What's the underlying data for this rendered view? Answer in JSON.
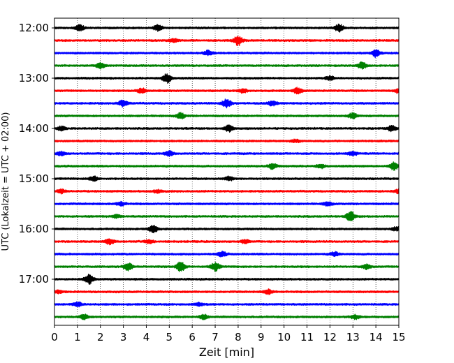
{
  "chart_data": {
    "type": "line",
    "title": "",
    "xlabel": "Zeit  [min]",
    "ylabel": "UTC (Lokalzeit = UTC + 02:00)",
    "xlim": [
      0,
      15
    ],
    "xticks": [
      0,
      1,
      2,
      3,
      4,
      5,
      6,
      7,
      8,
      9,
      10,
      11,
      12,
      13,
      14,
      15
    ],
    "x_tick_labels": [
      "0",
      "1",
      "2",
      "3",
      "4",
      "5",
      "6",
      "7",
      "8",
      "9",
      "10",
      "11",
      "12",
      "13",
      "14",
      "15"
    ],
    "y_tick_labels": [
      "12:00",
      "13:00",
      "14:00",
      "15:00",
      "16:00",
      "17:00"
    ],
    "grid": "vertical dotted",
    "trace_colors": [
      "#000000",
      "#ff0000",
      "#0000ff",
      "#008000"
    ],
    "row_minutes": 15,
    "start_time": "12:00",
    "traces": [
      {
        "start": "12:00",
        "color": "#000000",
        "bursts": [
          {
            "t": 1.1,
            "a": 0.6
          },
          {
            "t": 4.5,
            "a": 0.6
          },
          {
            "t": 12.4,
            "a": 0.8
          }
        ]
      },
      {
        "start": "12:15",
        "color": "#ff0000",
        "bursts": [
          {
            "t": 8.0,
            "a": 1.0
          },
          {
            "t": 5.2,
            "a": 0.4
          }
        ]
      },
      {
        "start": "12:30",
        "color": "#0000ff",
        "bursts": [
          {
            "t": 6.7,
            "a": 0.5
          },
          {
            "t": 14.0,
            "a": 0.8
          }
        ]
      },
      {
        "start": "12:45",
        "color": "#008000",
        "bursts": [
          {
            "t": 2.0,
            "a": 0.6
          },
          {
            "t": 13.4,
            "a": 0.7
          }
        ]
      },
      {
        "start": "13:00",
        "color": "#000000",
        "bursts": [
          {
            "t": 4.9,
            "a": 1.0
          },
          {
            "t": 12.0,
            "a": 0.4
          }
        ]
      },
      {
        "start": "13:15",
        "color": "#ff0000",
        "bursts": [
          {
            "t": 3.8,
            "a": 0.5
          },
          {
            "t": 8.2,
            "a": 0.4
          },
          {
            "t": 10.6,
            "a": 0.6
          },
          {
            "t": 15.0,
            "a": 0.5
          }
        ]
      },
      {
        "start": "13:30",
        "color": "#0000ff",
        "bursts": [
          {
            "t": 3.0,
            "a": 0.7
          },
          {
            "t": 7.5,
            "a": 0.9
          },
          {
            "t": 9.5,
            "a": 0.5
          }
        ]
      },
      {
        "start": "13:45",
        "color": "#008000",
        "bursts": [
          {
            "t": 5.5,
            "a": 0.6
          },
          {
            "t": 13.0,
            "a": 0.6
          }
        ]
      },
      {
        "start": "14:00",
        "color": "#000000",
        "bursts": [
          {
            "t": 0.3,
            "a": 0.4
          },
          {
            "t": 7.6,
            "a": 0.7
          },
          {
            "t": 14.7,
            "a": 0.6
          }
        ]
      },
      {
        "start": "14:15",
        "color": "#ff0000",
        "bursts": [
          {
            "t": 10.5,
            "a": 0.3
          }
        ]
      },
      {
        "start": "14:30",
        "color": "#0000ff",
        "bursts": [
          {
            "t": 0.3,
            "a": 0.4
          },
          {
            "t": 5.0,
            "a": 0.5
          },
          {
            "t": 13.0,
            "a": 0.4
          }
        ]
      },
      {
        "start": "14:45",
        "color": "#008000",
        "bursts": [
          {
            "t": 9.5,
            "a": 0.6
          },
          {
            "t": 11.6,
            "a": 0.4
          },
          {
            "t": 14.8,
            "a": 0.8
          }
        ]
      },
      {
        "start": "15:00",
        "color": "#000000",
        "bursts": [
          {
            "t": 1.7,
            "a": 0.5
          },
          {
            "t": 7.6,
            "a": 0.4
          }
        ]
      },
      {
        "start": "15:15",
        "color": "#ff0000",
        "bursts": [
          {
            "t": 0.3,
            "a": 0.4
          },
          {
            "t": 4.5,
            "a": 0.3
          },
          {
            "t": 15.0,
            "a": 0.4
          }
        ]
      },
      {
        "start": "15:30",
        "color": "#0000ff",
        "bursts": [
          {
            "t": 2.9,
            "a": 0.4
          },
          {
            "t": 11.9,
            "a": 0.4
          }
        ]
      },
      {
        "start": "15:45",
        "color": "#008000",
        "bursts": [
          {
            "t": 12.9,
            "a": 1.0
          },
          {
            "t": 2.7,
            "a": 0.3
          }
        ]
      },
      {
        "start": "16:00",
        "color": "#000000",
        "bursts": [
          {
            "t": 4.3,
            "a": 0.8
          },
          {
            "t": 14.9,
            "a": 0.4
          }
        ]
      },
      {
        "start": "16:15",
        "color": "#ff0000",
        "bursts": [
          {
            "t": 2.4,
            "a": 0.6
          },
          {
            "t": 4.1,
            "a": 0.4
          },
          {
            "t": 8.3,
            "a": 0.4
          }
        ]
      },
      {
        "start": "16:30",
        "color": "#0000ff",
        "bursts": [
          {
            "t": 7.3,
            "a": 0.5
          },
          {
            "t": 12.2,
            "a": 0.4
          }
        ]
      },
      {
        "start": "16:45",
        "color": "#008000",
        "bursts": [
          {
            "t": 3.2,
            "a": 0.8
          },
          {
            "t": 5.5,
            "a": 1.0
          },
          {
            "t": 7.0,
            "a": 0.9
          },
          {
            "t": 13.6,
            "a": 0.5
          }
        ]
      },
      {
        "start": "17:00",
        "color": "#000000",
        "bursts": [
          {
            "t": 1.5,
            "a": 1.0
          }
        ]
      },
      {
        "start": "17:15",
        "color": "#ff0000",
        "bursts": [
          {
            "t": 9.3,
            "a": 0.5
          },
          {
            "t": 0.2,
            "a": 0.3
          }
        ]
      },
      {
        "start": "17:30",
        "color": "#0000ff",
        "bursts": [
          {
            "t": 1.0,
            "a": 0.5
          },
          {
            "t": 6.3,
            "a": 0.3
          }
        ]
      },
      {
        "start": "17:45",
        "color": "#008000",
        "bursts": [
          {
            "t": 1.3,
            "a": 0.5
          },
          {
            "t": 6.5,
            "a": 0.5
          },
          {
            "t": 13.1,
            "a": 0.4
          }
        ]
      }
    ]
  }
}
